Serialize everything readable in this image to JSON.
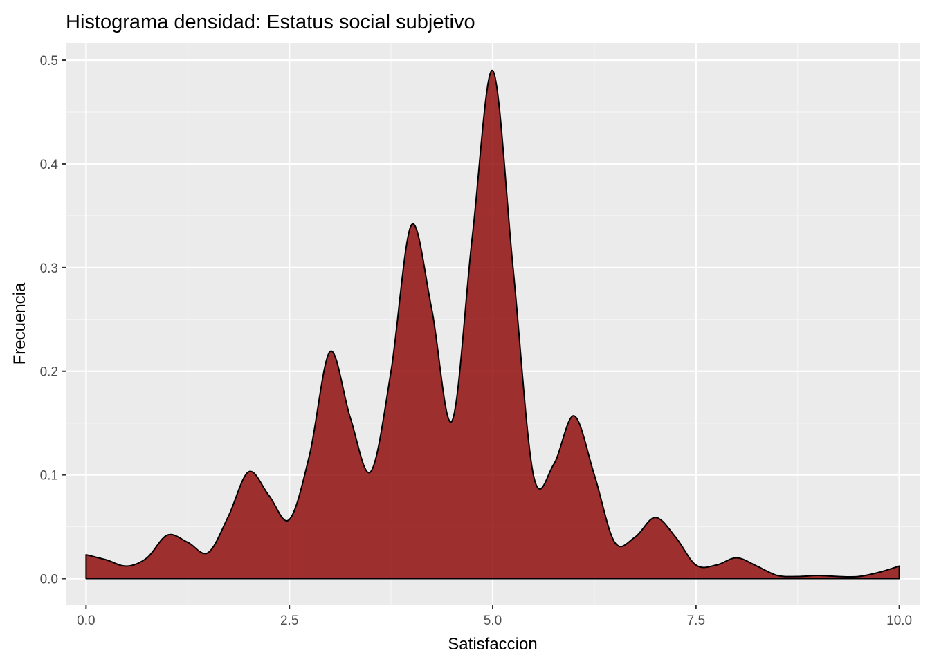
{
  "chart_data": {
    "type": "area",
    "title": "Histograma densidad: Estatus social subjetivo",
    "xlabel": "Satisfaccion",
    "ylabel": "Frecuencia",
    "xlim": [
      -0.25,
      10.25
    ],
    "ylim": [
      -0.025,
      0.5167
    ],
    "x_ticks": [
      0,
      2.5,
      5,
      7.5,
      10
    ],
    "x_tick_labels": [
      "0.0",
      "2.5",
      "5.0",
      "7.5",
      "10.0"
    ],
    "y_ticks": [
      0,
      0.1,
      0.2,
      0.3,
      0.4,
      0.5
    ],
    "y_tick_labels": [
      "0.0",
      "0.1",
      "0.2",
      "0.3",
      "0.4",
      "0.5"
    ],
    "grid": true,
    "legend": "none",
    "colors": {
      "panel": "#ebebeb",
      "grid_major": "#ffffff",
      "grid_minor": "#f5f5f5",
      "fill": "#8b0000",
      "fill_opacity": 0.8,
      "outline": "#000000",
      "tick_text": "#4d4d4d"
    },
    "series": [
      {
        "x": [
          0,
          0.25,
          0.5,
          0.75,
          1.0,
          1.25,
          1.5,
          1.75,
          2.0,
          2.25,
          2.5,
          2.75,
          3.0,
          3.25,
          3.5,
          3.75,
          4.0,
          4.25,
          4.5,
          4.75,
          5.0,
          5.25,
          5.5,
          5.75,
          6.0,
          6.25,
          6.5,
          6.75,
          7.0,
          7.25,
          7.5,
          7.75,
          8.0,
          8.25,
          8.5,
          8.75,
          9.0,
          9.25,
          9.5,
          9.75,
          10.0
        ],
        "y": [
          0.023,
          0.018,
          0.012,
          0.02,
          0.042,
          0.035,
          0.025,
          0.06,
          0.103,
          0.08,
          0.057,
          0.12,
          0.219,
          0.155,
          0.103,
          0.2,
          0.341,
          0.26,
          0.152,
          0.33,
          0.49,
          0.3,
          0.1,
          0.11,
          0.157,
          0.1,
          0.035,
          0.04,
          0.059,
          0.04,
          0.013,
          0.013,
          0.02,
          0.012,
          0.003,
          0.002,
          0.003,
          0.002,
          0.002,
          0.006,
          0.012
        ]
      }
    ]
  }
}
